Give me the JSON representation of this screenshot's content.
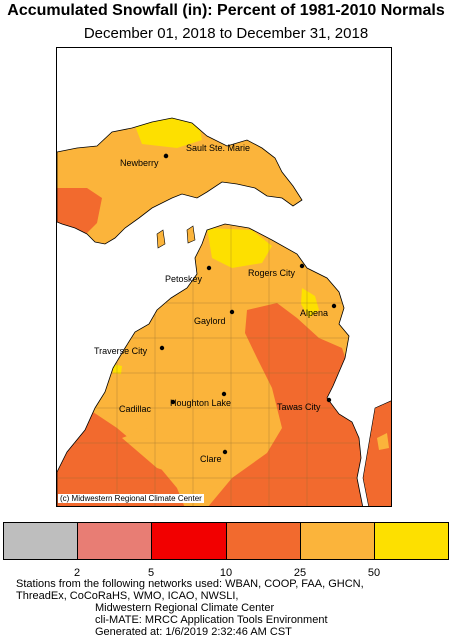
{
  "title": "Accumulated Snowfall (in): Percent of 1981-2010 Normals",
  "subtitle": "December 01, 2018 to December 31, 2018",
  "credit": "(c) Midwestern Regional Climate Center",
  "cities": [
    {
      "name": "Sault Ste. Marie"
    },
    {
      "name": "Newberry"
    },
    {
      "name": "Petoskey"
    },
    {
      "name": "Rogers City"
    },
    {
      "name": "Gaylord"
    },
    {
      "name": "Alpena"
    },
    {
      "name": "Traverse City"
    },
    {
      "name": "Cadillac"
    },
    {
      "name": "Houghton Lake"
    },
    {
      "name": "Tawas City"
    },
    {
      "name": "Clare"
    }
  ],
  "legend": {
    "colors": [
      "#bebebe",
      "#e87d74",
      "#f20000",
      "#f26a2e",
      "#fbb43b",
      "#fde000"
    ],
    "ticks": [
      "2",
      "5",
      "10",
      "25",
      "50"
    ]
  },
  "footer": {
    "line1": "Stations from the following networks used: WBAN, COOP, FAA, GHCN,",
    "line2": "ThreadEx, CoCoRaHS, WMO, ICAO, NWSLI,",
    "line3": "Midwestern Regional Climate Center",
    "line4": "cli-MATE: MRCC Application Tools Environment",
    "line5": "Generated at: 1/6/2019 2:32:46 AM CST"
  }
}
